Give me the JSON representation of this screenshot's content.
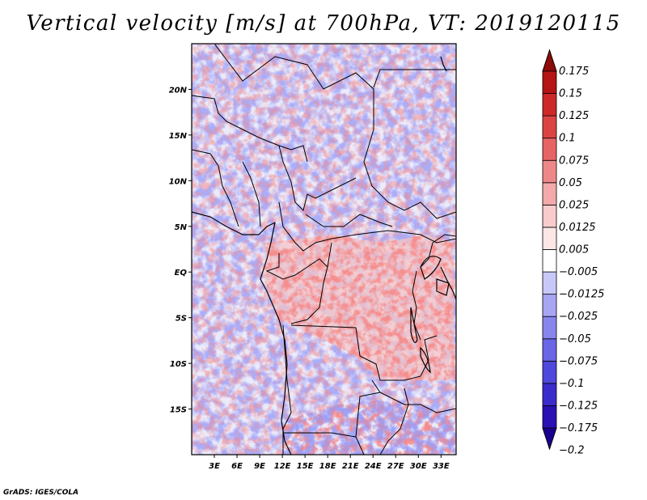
{
  "title": "Vertical velocity [m/s] at 700hPa, VT: 2019120115",
  "credit": "GrADS: IGES/COLA",
  "map": {
    "lon_range": [
      0,
      35
    ],
    "lat_range": [
      -20,
      25
    ],
    "lat_ticks": [
      {
        "value": 20,
        "label": "20N"
      },
      {
        "value": 15,
        "label": "15N"
      },
      {
        "value": 10,
        "label": "10N"
      },
      {
        "value": 5,
        "label": "5N"
      },
      {
        "value": 0,
        "label": "EQ"
      },
      {
        "value": -5,
        "label": "5S"
      },
      {
        "value": -10,
        "label": "10S"
      },
      {
        "value": -15,
        "label": "15S"
      }
    ],
    "lon_ticks": [
      {
        "value": 3,
        "label": "3E"
      },
      {
        "value": 6,
        "label": "6E"
      },
      {
        "value": 9,
        "label": "9E"
      },
      {
        "value": 12,
        "label": "12E"
      },
      {
        "value": 15,
        "label": "15E"
      },
      {
        "value": 18,
        "label": "18E"
      },
      {
        "value": 21,
        "label": "21E"
      },
      {
        "value": 24,
        "label": "24E"
      },
      {
        "value": 27,
        "label": "27E"
      },
      {
        "value": 30,
        "label": "30E"
      },
      {
        "value": 33,
        "label": "33E"
      }
    ]
  },
  "colorbar": {
    "colors": [
      "#1a0090",
      "#2810b4",
      "#3a2ccc",
      "#4e48dc",
      "#6a66e6",
      "#8886ee",
      "#a8a6f4",
      "#c8c8f8",
      "#ffffff",
      "#fce6e6",
      "#f8cccc",
      "#f4aaaa",
      "#ee8888",
      "#e66464",
      "#dc4444",
      "#cc2828",
      "#b41414",
      "#900a0a"
    ],
    "levels": [
      {
        "value": 0.175,
        "label": "0.175"
      },
      {
        "value": 0.15,
        "label": "0.15"
      },
      {
        "value": 0.125,
        "label": "0.125"
      },
      {
        "value": 0.1,
        "label": "0.1"
      },
      {
        "value": 0.075,
        "label": "0.075"
      },
      {
        "value": 0.05,
        "label": "0.05"
      },
      {
        "value": 0.025,
        "label": "0.025"
      },
      {
        "value": 0.0125,
        "label": "0.0125"
      },
      {
        "value": 0.005,
        "label": "0.005"
      },
      {
        "value": -0.005,
        "label": "−0.005"
      },
      {
        "value": -0.0125,
        "label": "−0.0125"
      },
      {
        "value": -0.025,
        "label": "−0.025"
      },
      {
        "value": -0.05,
        "label": "−0.05"
      },
      {
        "value": -0.075,
        "label": "−0.075"
      },
      {
        "value": -0.1,
        "label": "−0.1"
      },
      {
        "value": -0.125,
        "label": "−0.125"
      },
      {
        "value": -0.175,
        "label": "−0.175"
      },
      {
        "value": -0.2,
        "label": "−0.2"
      }
    ]
  }
}
